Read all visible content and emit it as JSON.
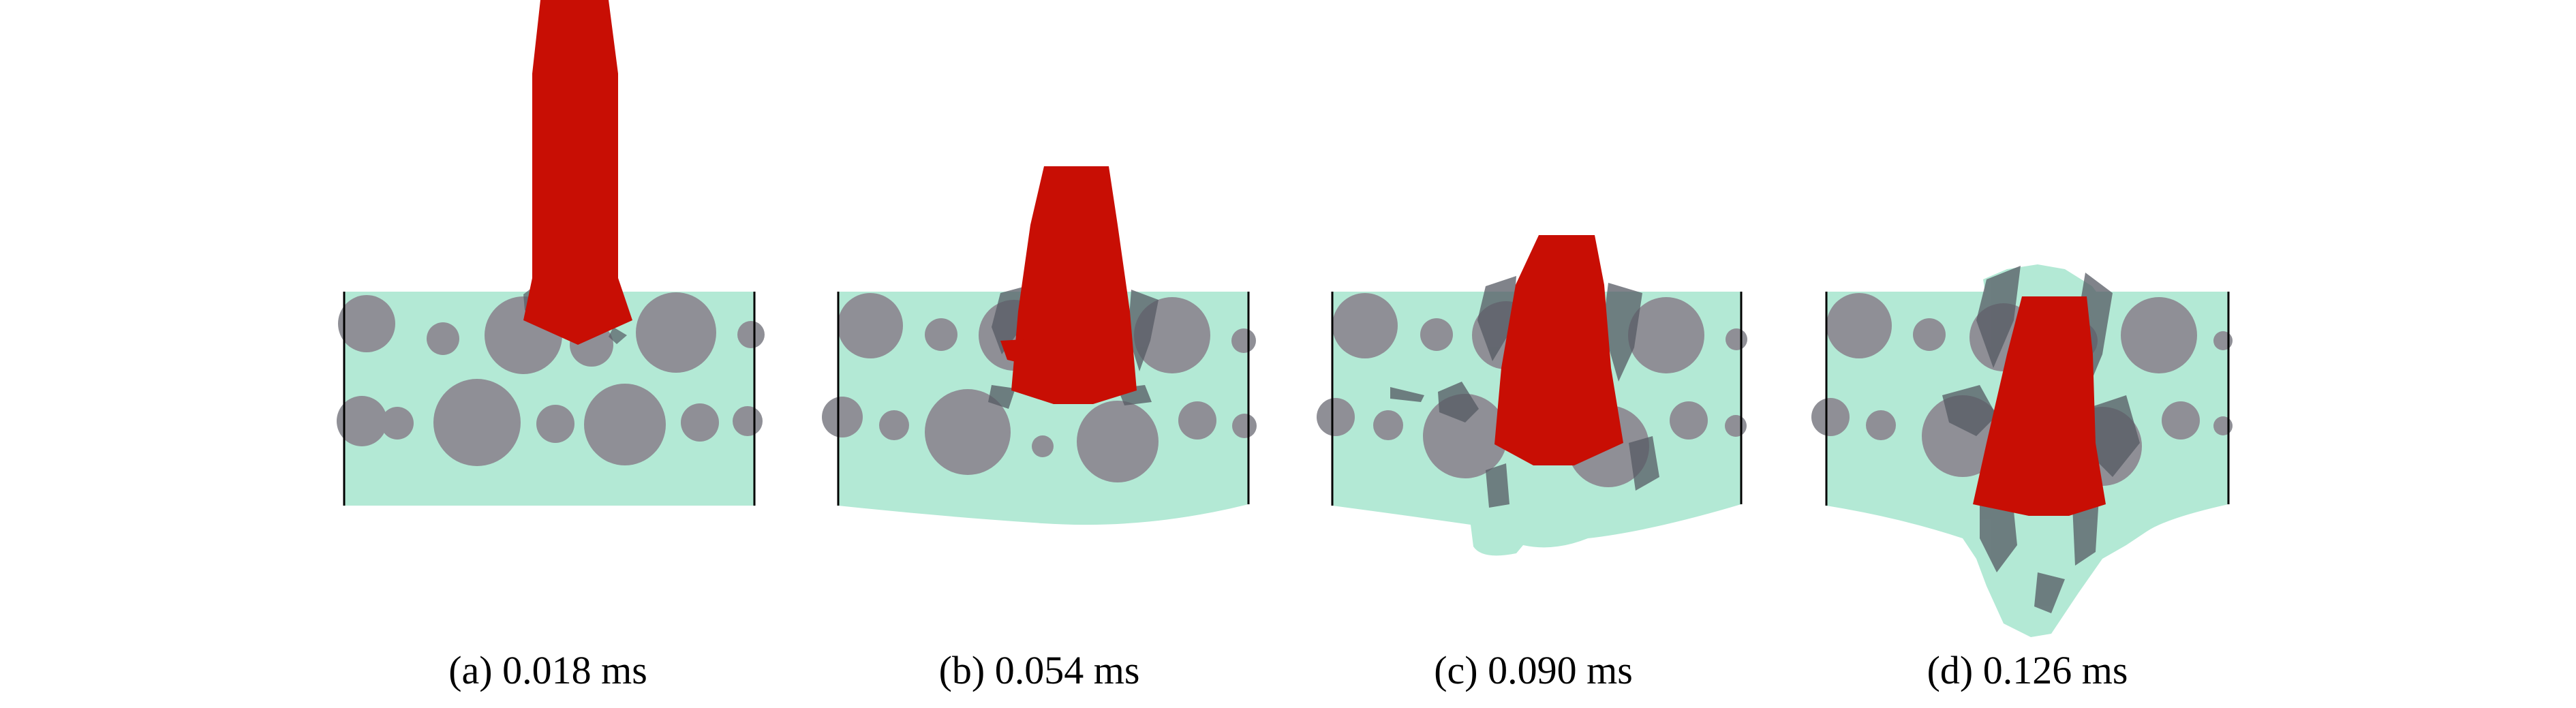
{
  "colors": {
    "matrix": "#b3e9d5",
    "aggregate": "#8f8f96",
    "projectile": "#c80e04",
    "damage": "#555a63",
    "background": "#ffffff"
  },
  "panels": [
    {
      "id": "a",
      "caption": "(a) 0.018 ms"
    },
    {
      "id": "b",
      "caption": "(b) 0.054 ms"
    },
    {
      "id": "c",
      "caption": "(c) 0.090 ms"
    },
    {
      "id": "d",
      "caption": "(d) 0.126 ms"
    }
  ]
}
